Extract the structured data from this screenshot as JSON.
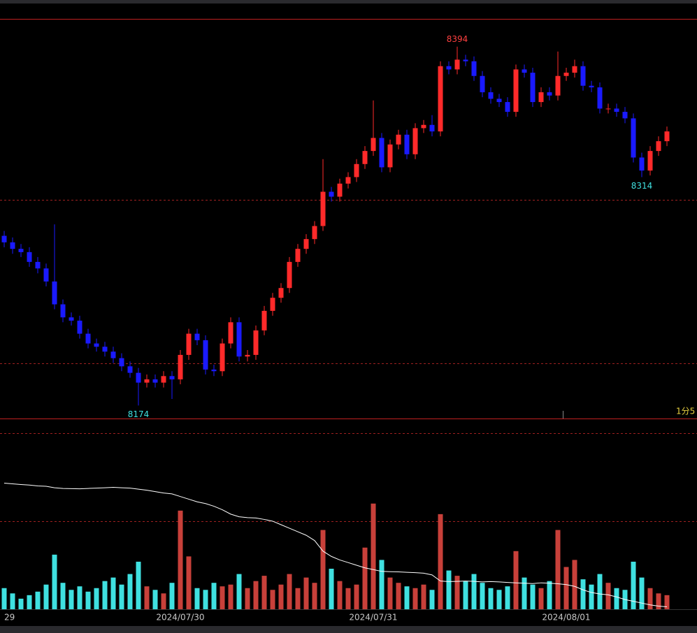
{
  "chart_data": {
    "type": "candlestick",
    "categories": [
      "29",
      null,
      null,
      null,
      null,
      null,
      null,
      null,
      null,
      null,
      null,
      null,
      null,
      null,
      null,
      null,
      null,
      null,
      null,
      null,
      null,
      "2024/07/30",
      null,
      null,
      null,
      null,
      null,
      null,
      null,
      null,
      null,
      null,
      null,
      null,
      null,
      null,
      null,
      null,
      null,
      null,
      null,
      null,
      null,
      null,
      "2024/07/31",
      null,
      null,
      null,
      null,
      null,
      null,
      null,
      null,
      null,
      null,
      null,
      null,
      null,
      null,
      null,
      null,
      null,
      null,
      null,
      null,
      null,
      null,
      "2024/08/01",
      null,
      null,
      null,
      null,
      null,
      null,
      null,
      null,
      null,
      null,
      null,
      null
    ],
    "open": [
      8278,
      8274,
      8270,
      8268,
      8262,
      8258,
      8250,
      8236,
      8228,
      8226,
      8218,
      8212,
      8210,
      8207,
      8203,
      8198,
      8194,
      8188,
      8190,
      8188,
      8192,
      8190,
      8205,
      8218,
      8214,
      8196,
      8195,
      8212,
      8225,
      8204,
      8205,
      8220,
      8232,
      8240,
      8246,
      8262,
      8270,
      8276,
      8284,
      8305,
      8302,
      8310,
      8314,
      8322,
      8330,
      8338,
      8320,
      8334,
      8340,
      8328,
      8344,
      8346,
      8342,
      8382,
      8380,
      8386,
      8385,
      8376,
      8366,
      8362,
      8360,
      8354,
      8380,
      8378,
      8360,
      8366,
      8364,
      8376,
      8378,
      8382,
      8370,
      8369,
      8356,
      8356,
      8354,
      8350,
      8326,
      8318,
      8330,
      8336
    ],
    "high": [
      8281,
      8277,
      8273,
      8271,
      8265,
      8261,
      8285,
      8239,
      8231,
      8229,
      8221,
      8215,
      8213,
      8210,
      8206,
      8201,
      8197,
      8193,
      8193,
      8195,
      8195,
      8208,
      8221,
      8221,
      8217,
      8199,
      8215,
      8228,
      8228,
      8208,
      8223,
      8235,
      8243,
      8249,
      8265,
      8273,
      8279,
      8287,
      8325,
      8308,
      8313,
      8317,
      8325,
      8333,
      8361,
      8341,
      8337,
      8343,
      8343,
      8347,
      8349,
      8352,
      8385,
      8385,
      8394,
      8389,
      8388,
      8379,
      8369,
      8365,
      8363,
      8383,
      8383,
      8381,
      8369,
      8369,
      8391,
      8381,
      8386,
      8385,
      8373,
      8372,
      8359,
      8359,
      8357,
      8353,
      8329,
      8333,
      8339,
      8345
    ],
    "low": [
      8271,
      8267,
      8265,
      8259,
      8255,
      8247,
      8233,
      8225,
      8223,
      8215,
      8209,
      8207,
      8204,
      8200,
      8195,
      8191,
      8174,
      8185,
      8185,
      8185,
      8178,
      8187,
      8202,
      8211,
      8193,
      8192,
      8192,
      8209,
      8201,
      8201,
      8202,
      8217,
      8229,
      8237,
      8243,
      8259,
      8267,
      8273,
      8281,
      8299,
      8299,
      8307,
      8311,
      8319,
      8327,
      8317,
      8317,
      8331,
      8325,
      8325,
      8341,
      8339,
      8339,
      8377,
      8377,
      8382,
      8373,
      8363,
      8359,
      8357,
      8351,
      8351,
      8375,
      8357,
      8357,
      8361,
      8361,
      8373,
      8375,
      8367,
      8366,
      8353,
      8353,
      8351,
      8347,
      8323,
      8314,
      8315,
      8327,
      8333
    ],
    "close": [
      8274,
      8270,
      8268,
      8262,
      8258,
      8250,
      8236,
      8228,
      8226,
      8218,
      8212,
      8210,
      8207,
      8203,
      8198,
      8194,
      8188,
      8190,
      8188,
      8192,
      8190,
      8205,
      8218,
      8214,
      8196,
      8195,
      8212,
      8225,
      8204,
      8205,
      8220,
      8232,
      8240,
      8246,
      8262,
      8270,
      8276,
      8284,
      8305,
      8302,
      8310,
      8314,
      8322,
      8330,
      8338,
      8320,
      8334,
      8340,
      8328,
      8344,
      8346,
      8342,
      8382,
      8380,
      8386,
      8385,
      8376,
      8366,
      8362,
      8360,
      8354,
      8380,
      8378,
      8360,
      8366,
      8364,
      8376,
      8378,
      8382,
      8370,
      8369,
      8356,
      8356,
      8354,
      8350,
      8326,
      8318,
      8330,
      8336,
      8342
    ],
    "ylim": [
      8166,
      8411
    ],
    "ygrid": [
      8200,
      8300
    ],
    "up_color": "#ff2a2a",
    "down_color": "#1a1aff",
    "annotations": [
      {
        "label": "8394",
        "x": 54,
        "y": 8394,
        "at": "high",
        "color": "#ff4040"
      },
      {
        "label": "8174",
        "x": 16,
        "y": 8174,
        "at": "low",
        "color": "#40e0e0"
      },
      {
        "label": "8314",
        "x": 76,
        "y": 8314,
        "at": "low",
        "color": "#40e0e0"
      }
    ],
    "status_text": "1分5",
    "volume": {
      "values": [
        120,
        90,
        60,
        80,
        100,
        140,
        310,
        150,
        110,
        130,
        100,
        120,
        160,
        180,
        140,
        200,
        270,
        130,
        110,
        90,
        150,
        560,
        300,
        120,
        110,
        150,
        130,
        140,
        200,
        120,
        160,
        190,
        110,
        140,
        200,
        120,
        180,
        150,
        450,
        230,
        160,
        120,
        140,
        350,
        600,
        280,
        180,
        150,
        130,
        120,
        140,
        110,
        540,
        220,
        190,
        160,
        200,
        150,
        120,
        110,
        130,
        330,
        180,
        140,
        120,
        160,
        450,
        240,
        280,
        170,
        140,
        200,
        150,
        120,
        110,
        270,
        180,
        120,
        90,
        80
      ],
      "ylim": [
        0,
        1083
      ],
      "ygrid": [
        500,
        1000
      ],
      "up_color": "#c8403a",
      "down_color": "#3fe0e0"
    },
    "line": {
      "values": [
        716,
        712,
        708,
        705,
        700,
        698,
        690,
        686,
        685,
        684,
        686,
        688,
        690,
        692,
        690,
        688,
        682,
        676,
        668,
        660,
        655,
        640,
        625,
        610,
        600,
        585,
        565,
        540,
        525,
        520,
        518,
        510,
        500,
        480,
        460,
        440,
        420,
        390,
        330,
        300,
        280,
        265,
        250,
        235,
        225,
        215,
        213,
        212,
        210,
        208,
        205,
        195,
        160,
        157,
        158,
        160,
        158,
        155,
        157,
        155,
        152,
        150,
        148,
        146,
        150,
        148,
        145,
        140,
        130,
        110,
        95,
        87,
        82,
        70,
        55,
        45,
        35,
        25,
        18,
        14
      ],
      "color": "#ffffff"
    }
  }
}
